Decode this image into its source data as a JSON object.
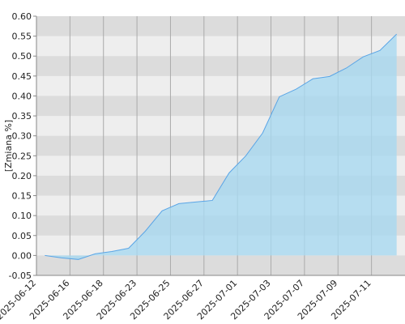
{
  "chart_data": {
    "type": "area",
    "y_label": "[Zmiana %]",
    "categories": [
      "2025-06-12",
      null,
      "2025-06-16",
      null,
      "2025-06-18",
      null,
      "2025-06-23",
      null,
      "2025-06-25",
      null,
      "2025-06-27",
      null,
      "2025-07-01",
      null,
      "2025-07-03",
      null,
      "2025-07-07",
      null,
      "2025-07-09",
      null,
      "2025-07-11",
      null
    ],
    "values": [
      0.0,
      -0.006,
      -0.01,
      0.004,
      0.01,
      0.018,
      0.061,
      0.112,
      0.13,
      0.134,
      0.138,
      0.207,
      0.25,
      0.307,
      0.398,
      0.417,
      0.443,
      0.449,
      0.47,
      0.498,
      0.514,
      0.555
    ],
    "color": "#5aa5e6",
    "ylim": [
      -0.05,
      0.6
    ],
    "yticks": [
      -0.05,
      {
        "value": 0,
        "label": "0.00"
      },
      0.05,
      {
        "value": 0.1,
        "label": "0.10"
      },
      0.15,
      {
        "value": 0.2,
        "label": "0.20"
      },
      0.25,
      {
        "value": 0.3,
        "label": "0.30"
      },
      0.35,
      {
        "value": 0.4,
        "label": "0.40"
      },
      0.45,
      {
        "value": 0.5,
        "label": "0.50"
      },
      0.55,
      {
        "value": 0.6,
        "label": "0.60"
      }
    ],
    "grid": true
  }
}
